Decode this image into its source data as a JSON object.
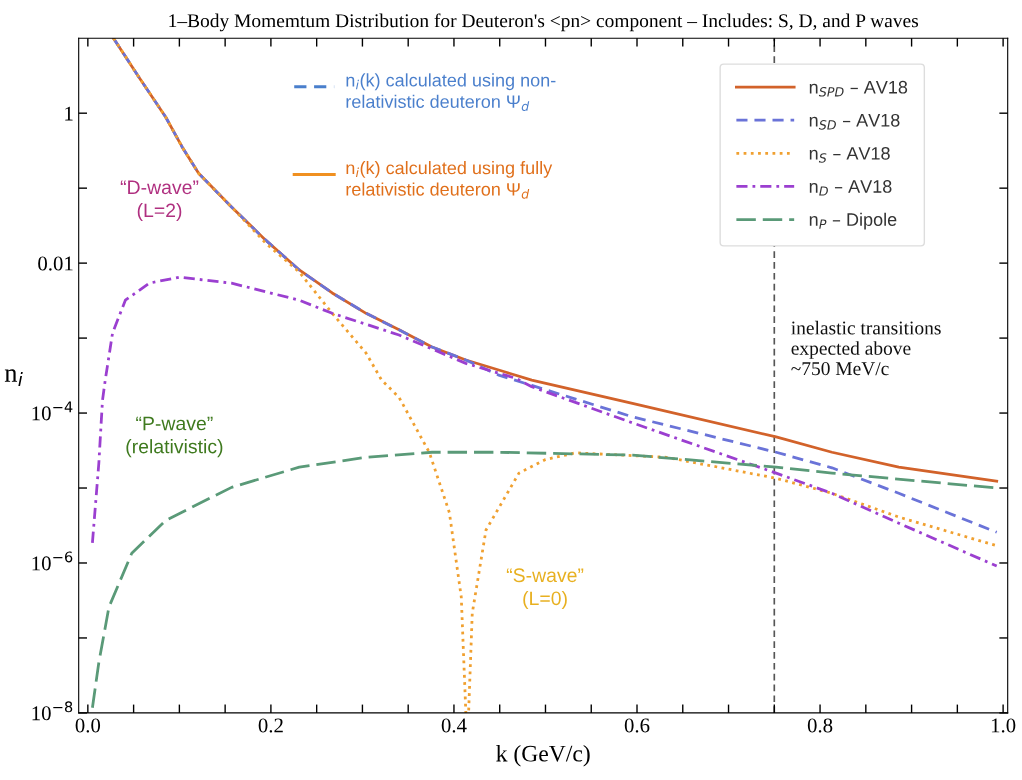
{
  "chart_data": {
    "type": "line",
    "title": "1–Body Momemtum Distribution for Deuteron's <pn> component – Includes: S, D, and P waves",
    "xlabel": "k (GeV/c)",
    "ylabel": "n$_{i}$",
    "log": "y",
    "grid": false,
    "legend": "top right",
    "xlim": [
      -0.01,
      1.005
    ],
    "ylim": [
      1e-08,
      10
    ],
    "xticks": [
      {
        "value": 0,
        "label": "0.0"
      },
      {
        "value": 0.05,
        "label": null
      },
      {
        "value": 0.1,
        "label": null
      },
      {
        "value": 0.15,
        "label": null
      },
      {
        "value": 0.2,
        "label": "0.2"
      },
      {
        "value": 0.25,
        "label": null
      },
      {
        "value": 0.3,
        "label": null
      },
      {
        "value": 0.35,
        "label": null
      },
      {
        "value": 0.4,
        "label": "0.4"
      },
      {
        "value": 0.45,
        "label": null
      },
      {
        "value": 0.5,
        "label": null
      },
      {
        "value": 0.55,
        "label": null
      },
      {
        "value": 0.6,
        "label": "0.6"
      },
      {
        "value": 0.65,
        "label": null
      },
      {
        "value": 0.7,
        "label": null
      },
      {
        "value": 0.75,
        "label": null
      },
      {
        "value": 0.8,
        "label": "0.8"
      },
      {
        "value": 0.85,
        "label": null
      },
      {
        "value": 0.9,
        "label": null
      },
      {
        "value": 0.95,
        "label": null
      },
      {
        "value": 1.0,
        "label": "1.0"
      }
    ],
    "yticks": [
      {
        "value": 1e-08,
        "label": "10$^{−8}$"
      },
      {
        "value": 1e-07,
        "label": null
      },
      {
        "value": 1e-06,
        "label": "10$^{−6}$"
      },
      {
        "value": 1e-05,
        "label": null
      },
      {
        "value": 0.0001,
        "label": "10$^{−4}$"
      },
      {
        "value": 0.001,
        "label": null
      },
      {
        "value": 0.01,
        "label": "0.01"
      },
      {
        "value": 0.1,
        "label": null
      },
      {
        "value": 1,
        "label": "1"
      }
    ],
    "series": [
      {
        "name": "n$_{SPD}$ – AV18",
        "color": "#d2622a",
        "line_style": "solid",
        "x": [
          0.028,
          0.056,
          0.085,
          0.103,
          0.121,
          0.157,
          0.194,
          0.231,
          0.267,
          0.304,
          0.34,
          0.376,
          0.413,
          0.457,
          0.485,
          0.595,
          0.752,
          0.813,
          0.886,
          0.993
        ],
        "values": [
          10,
          3.0,
          0.89,
          0.355,
          0.158,
          0.056,
          0.0204,
          0.0081,
          0.004,
          0.00214,
          0.00129,
          0.00076,
          0.00051,
          0.00035,
          0.000275,
          0.000135,
          4.8e-05,
          3e-05,
          1.9e-05,
          1.23e-05
        ]
      },
      {
        "name": "n$_{SD}$ – AV18",
        "color": "#6a73d8",
        "line_style": "dashed",
        "x": [
          0.028,
          0.056,
          0.085,
          0.103,
          0.121,
          0.157,
          0.194,
          0.231,
          0.267,
          0.304,
          0.34,
          0.376,
          0.413,
          0.449,
          0.485,
          0.595,
          0.752,
          0.813,
          0.886,
          0.993
        ],
        "values": [
          10,
          3.0,
          0.89,
          0.355,
          0.158,
          0.056,
          0.0204,
          0.0081,
          0.004,
          0.00214,
          0.00129,
          0.00076,
          0.00051,
          0.00032,
          0.000234,
          8.9e-05,
          3e-05,
          1.86e-05,
          8.5e-06,
          2.57e-06
        ]
      },
      {
        "name": "n$_{S}$ – AV18",
        "color": "#f0a030",
        "line_style": "dotted",
        "x": [
          0.028,
          0.056,
          0.085,
          0.103,
          0.121,
          0.157,
          0.194,
          0.231,
          0.267,
          0.304,
          0.321,
          0.34,
          0.373,
          0.395,
          0.408,
          0.413,
          0.416,
          0.42,
          0.435,
          0.471,
          0.5,
          0.533,
          0.632,
          0.752,
          0.813,
          0.886,
          0.993
        ],
        "values": [
          10,
          3.0,
          0.89,
          0.355,
          0.158,
          0.056,
          0.0186,
          0.0076,
          0.00214,
          0.00063,
          0.000275,
          0.000162,
          3e-05,
          4.7e-06,
          3.5e-07,
          1e-08,
          1e-08,
          2.14e-07,
          2.75e-06,
          1.58e-05,
          2.4e-05,
          2.95e-05,
          2.57e-05,
          1.35e-05,
          8.5e-06,
          4.1e-06,
          1.7e-06
        ]
      },
      {
        "name": "n$_{D}$ – AV18",
        "color": "#9b3fd0",
        "line_style": "dashdot",
        "x": [
          0.005,
          0.012,
          0.016,
          0.019,
          0.027,
          0.041,
          0.067,
          0.1,
          0.157,
          0.231,
          0.267,
          0.34,
          0.413,
          0.468,
          0.485,
          0.595,
          0.752,
          0.813,
          0.886,
          0.993
        ],
        "values": [
          1.86e-06,
          2.14e-05,
          0.000148,
          0.000275,
          0.00117,
          0.0032,
          0.0054,
          0.0065,
          0.0054,
          0.0032,
          0.00214,
          0.0011,
          0.00046,
          0.00029,
          0.000224,
          7.4e-05,
          1.58e-05,
          8.5e-06,
          3.4e-06,
          9.1e-07
        ]
      },
      {
        "name": "n$_{P}$ – Dipole",
        "color": "#5a9a78",
        "line_style": "longdash",
        "x": [
          0.005,
          0.012,
          0.023,
          0.048,
          0.085,
          0.157,
          0.231,
          0.304,
          0.376,
          0.449,
          0.595,
          0.752,
          0.813,
          0.993
        ],
        "values": [
          1.17e-08,
          4.7e-08,
          2.57e-07,
          1.35e-06,
          3.7e-06,
          1.02e-05,
          1.9e-05,
          2.57e-05,
          3e-05,
          3e-05,
          2.75e-05,
          1.9e-05,
          1.58e-05,
          1e-05
        ]
      }
    ],
    "ref_lines": [
      {
        "axis": "x",
        "value": 0.75,
        "label": "inelastic transitions\nexpected above\n~750 MeV/c",
        "color": "#555555",
        "line_style": "dashed"
      }
    ],
    "annotations": [
      "n$_{i}$(k) calculated using non-\nrelativistic deuteron Ψ$_{d}$",
      "n$_{i}$(k) calculated using fully\nrelativistic deuteron Ψ$_{d}$",
      "“D-wave”\n(L=2)",
      "“P-wave”\n(relativistic)",
      "“S-wave”\n(L=0)"
    ]
  }
}
